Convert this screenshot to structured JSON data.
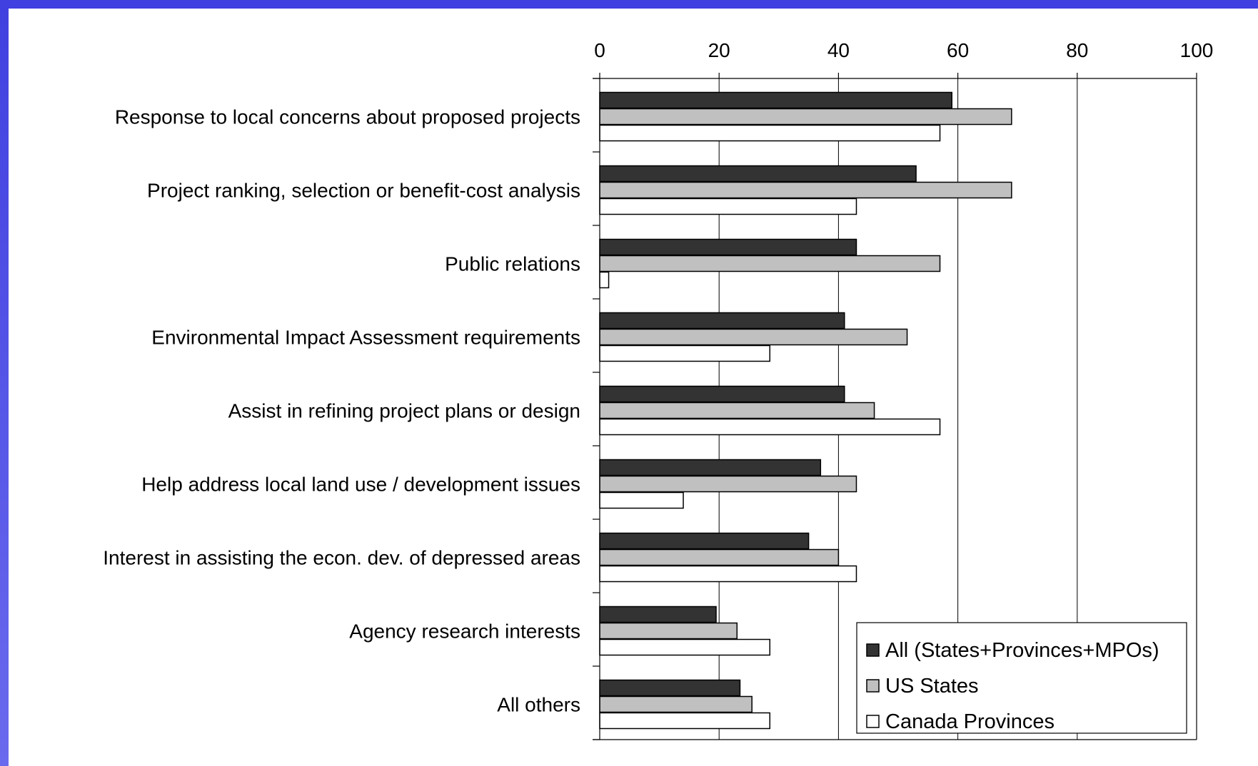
{
  "chart_data": {
    "type": "bar",
    "orientation": "horizontal",
    "categories": [
      "Response to local concerns about proposed projects",
      "Project ranking, selection or benefit-cost analysis",
      "Public relations",
      "Environmental Impact Assessment requirements",
      "Assist in refining project plans or design",
      "Help address local land use / development issues",
      "Interest in assisting the econ. dev. of depressed areas",
      "Agency research interests",
      "All others"
    ],
    "series": [
      {
        "name": "All (States+Provinces+MPOs)",
        "color": "#333333",
        "values": [
          59,
          53,
          43,
          41,
          41,
          37,
          35,
          19.5,
          23.5
        ]
      },
      {
        "name": "US States",
        "color": "#c0c0c0",
        "values": [
          69,
          69,
          57,
          51.5,
          46,
          43,
          40,
          23,
          25.5
        ]
      },
      {
        "name": "Canada Provinces",
        "color": "#ffffff",
        "values": [
          57,
          43,
          1.5,
          28.5,
          57,
          14,
          43,
          28.5,
          28.5
        ]
      }
    ],
    "xlim": [
      0,
      100
    ],
    "xticks": [
      0,
      20,
      40,
      60,
      80,
      100
    ],
    "x_axis_position": "top",
    "grid": true,
    "legend_position": "bottom-right",
    "title": "",
    "xlabel": "",
    "ylabel": ""
  }
}
